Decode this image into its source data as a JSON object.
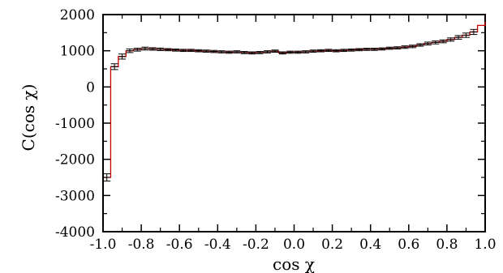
{
  "chart_data": {
    "type": "scatter",
    "xlabel": "cos χ",
    "ylabel": "C(cos χ)",
    "xlim": [
      -1.0,
      1.0
    ],
    "ylim": [
      -4000,
      2000
    ],
    "grid": false,
    "legend": "none",
    "x_ticks": [
      "-1.0",
      "-0.8",
      "-0.6",
      "-0.4",
      "-0.2",
      "0.0",
      "0.2",
      "0.4",
      "0.6",
      "0.8",
      "1.0"
    ],
    "y_ticks": [
      "-4000",
      "-3000",
      "-2000",
      "-1000",
      "0",
      "1000",
      "2000"
    ],
    "colors": {
      "points": "#000000",
      "line": "#cc0000",
      "frame": "#000000"
    },
    "series": [
      {
        "type": "errorbar",
        "x": [
          -0.98,
          -0.94,
          -0.9,
          -0.86,
          -0.82,
          -0.78,
          -0.74,
          -0.7,
          -0.66,
          -0.62,
          -0.58,
          -0.54,
          -0.5,
          -0.46,
          -0.42,
          -0.38,
          -0.34,
          -0.3,
          -0.26,
          -0.22,
          -0.18,
          -0.14,
          -0.1,
          -0.06,
          -0.02,
          0.02,
          0.06,
          0.1,
          0.14,
          0.18,
          0.22,
          0.26,
          0.3,
          0.34,
          0.38,
          0.42,
          0.46,
          0.5,
          0.54,
          0.58,
          0.62,
          0.66,
          0.7,
          0.74,
          0.78,
          0.82,
          0.86,
          0.9,
          0.94
        ],
        "y": [
          -2500,
          560,
          840,
          1000,
          1030,
          1060,
          1050,
          1040,
          1030,
          1020,
          1010,
          1010,
          1000,
          990,
          980,
          970,
          960,
          970,
          950,
          940,
          950,
          970,
          990,
          940,
          960,
          960,
          970,
          990,
          1000,
          1010,
          1000,
          1010,
          1020,
          1030,
          1040,
          1040,
          1050,
          1070,
          1080,
          1100,
          1120,
          1160,
          1200,
          1230,
          1260,
          1310,
          1370,
          1430,
          1520
        ],
        "error": [
          100,
          80,
          70,
          50,
          40,
          40,
          35,
          35,
          30,
          30,
          30,
          30,
          30,
          30,
          30,
          30,
          30,
          30,
          30,
          30,
          30,
          30,
          30,
          30,
          30,
          30,
          30,
          30,
          30,
          30,
          30,
          30,
          30,
          30,
          30,
          30,
          30,
          30,
          30,
          35,
          35,
          35,
          40,
          40,
          40,
          45,
          50,
          60,
          70
        ]
      },
      {
        "type": "step",
        "x": [
          -1.0,
          -0.96,
          -0.92,
          -0.88,
          -0.84,
          -0.8,
          -0.76,
          -0.72,
          -0.68,
          -0.64,
          -0.6,
          -0.56,
          -0.52,
          -0.48,
          -0.44,
          -0.4,
          -0.36,
          -0.32,
          -0.28,
          -0.24,
          -0.2,
          -0.16,
          -0.12,
          -0.08,
          -0.04,
          0.0,
          0.04,
          0.08,
          0.12,
          0.16,
          0.2,
          0.24,
          0.28,
          0.32,
          0.36,
          0.4,
          0.44,
          0.48,
          0.52,
          0.56,
          0.6,
          0.64,
          0.68,
          0.72,
          0.76,
          0.8,
          0.84,
          0.88,
          0.92,
          0.96
        ],
        "y": [
          -2500,
          560,
          840,
          1000,
          1030,
          1060,
          1050,
          1040,
          1030,
          1020,
          1010,
          1010,
          1000,
          990,
          980,
          970,
          960,
          970,
          950,
          940,
          950,
          970,
          990,
          940,
          960,
          960,
          970,
          990,
          1000,
          1010,
          1000,
          1010,
          1020,
          1030,
          1040,
          1040,
          1050,
          1070,
          1080,
          1100,
          1120,
          1160,
          1200,
          1230,
          1260,
          1310,
          1370,
          1430,
          1520,
          1700
        ],
        "note_end_y": 2000
      }
    ]
  }
}
